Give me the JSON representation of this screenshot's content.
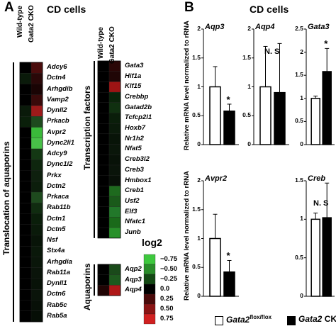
{
  "panel_a": {
    "letter": "A",
    "title": "CD cells",
    "col_labels": [
      "Wild-type",
      "Gata2 CKO"
    ],
    "group1_label": "Translocation of aquaporins",
    "group1_genes": [
      "Adcy6",
      "Dctn4",
      "Arhgdib",
      "Vamp2",
      "Dynll2",
      "Prkacb",
      "Avpr2",
      "Dync2li1",
      "Adcy9",
      "Dync1i2",
      "Prkx",
      "Dctn2",
      "Prkaca",
      "Rab11b",
      "Dctn1",
      "Dctn5",
      "Nsf",
      "Stx4a",
      "Arhgdia",
      "Rab11a",
      "Dynll1",
      "Dctn6",
      "Rab5c",
      "Rab5a"
    ],
    "group1_cells": [
      [
        "#000000",
        "#4a0c0c"
      ],
      [
        "#0a1a0a",
        "#2a0808"
      ],
      [
        "#000000",
        "#1a0404"
      ],
      [
        "#000000",
        "#3a0a0a"
      ],
      [
        "#0a1a0a",
        "#9e1a1a"
      ],
      [
        "#0a1f0a",
        "#1e4a1e"
      ],
      [
        "#000000",
        "#3ab93a"
      ],
      [
        "#000000",
        "#48c048"
      ],
      [
        "#000000",
        "#143814"
      ],
      [
        "#000000",
        "#0e260e"
      ],
      [
        "#000000",
        "#0e200e"
      ],
      [
        "#000000",
        "#0c1e0c"
      ],
      [
        "#000000",
        "#1e4a1e"
      ],
      [
        "#000000",
        "#102c10"
      ],
      [
        "#000000",
        "#0a1e0a"
      ],
      [
        "#000000",
        "#0a1a0a"
      ],
      [
        "#000000",
        "#081408"
      ],
      [
        "#000000",
        "#0a180a"
      ],
      [
        "#000000",
        "#0a160a"
      ],
      [
        "#000000",
        "#0a140a"
      ],
      [
        "#000000",
        "#081208"
      ],
      [
        "#000000",
        "#0a140a"
      ],
      [
        "#000000",
        "#081008"
      ],
      [
        "#000000",
        "#060e06"
      ]
    ],
    "group2_label": "Transcription factors",
    "group2_genes": [
      "Gata3",
      "Hif1a",
      "Klf15",
      "Crebbp",
      "Gatad2b",
      "Tcfcp2l1",
      "Hoxb7",
      "Nr1h2",
      "Nfat5",
      "Creb3l2",
      "Creb3",
      "Hmbox1",
      "Creb1",
      "Usf2",
      "Elf3",
      "Nfatc1",
      "Junb"
    ],
    "group2_cells": [
      [
        "#000000",
        "#2a0606"
      ],
      [
        "#000000",
        "#200606"
      ],
      [
        "#000000",
        "#9e1414"
      ],
      [
        "#000000",
        "#0a240a"
      ],
      [
        "#000000",
        "#103010"
      ],
      [
        "#000000",
        "#0a1e0a"
      ],
      [
        "#000000",
        "#0a1a0a"
      ],
      [
        "#000000",
        "#081408"
      ],
      [
        "#000000",
        "#0a160a"
      ],
      [
        "#000000",
        "#081208"
      ],
      [
        "#000000",
        "#0a140a"
      ],
      [
        "#000000",
        "#081008"
      ],
      [
        "#000000",
        "#1e6a1e"
      ],
      [
        "#000000",
        "#1a5a1a"
      ],
      [
        "#000000",
        "#22782a"
      ],
      [
        "#000000",
        "#1a6a1a"
      ],
      [
        "#000000",
        "#28902a"
      ]
    ],
    "group3_label": "Aquaporins",
    "group3_genes": [
      "Aqp2",
      "Aqp3",
      "Aqp4"
    ],
    "group3_cells": [
      [
        "#000000",
        "#1a4a1a"
      ],
      [
        "#000000",
        "#1e5a1e"
      ],
      [
        "#200404",
        "#b01818"
      ]
    ],
    "legend": {
      "title": "log2",
      "values": [
        "−0.75",
        "−0.50",
        "−0.25",
        "0.0",
        "0.25",
        "0.50",
        "0.75"
      ],
      "colors": [
        "#3ec83e",
        "#2a8c2a",
        "#144814",
        "#000000",
        "#4a0a0a",
        "#8a1414",
        "#d02020"
      ]
    }
  },
  "panel_b": {
    "letter": "B",
    "title": "CD cells",
    "ylabel": "Relative mRNA level normalized to rRNA",
    "legend_wt": "Gata2",
    "legend_wt_sup": "flox/flox",
    "legend_cko": "Gata2",
    "legend_cko_suffix": " CKO"
  },
  "chart_data": [
    {
      "type": "bar",
      "title": "Aqp3",
      "categories": [
        "Gata2 flox/flox",
        "Gata2 CKO"
      ],
      "values": [
        1.0,
        0.58
      ],
      "errors": [
        0.35,
        0.12
      ],
      "ylim": [
        0,
        2
      ],
      "yticks": [
        "0",
        "0.5",
        "1",
        "1.5",
        "2"
      ],
      "annotation": "*"
    },
    {
      "type": "bar",
      "title": "Aqp4",
      "categories": [
        "Gata2 flox/flox",
        "Gata2 CKO"
      ],
      "values": [
        1.0,
        0.9
      ],
      "errors": [
        0.7,
        0.85
      ],
      "ylim": [
        0,
        2
      ],
      "yticks": [
        "0",
        "0.5",
        "1",
        "1.5",
        "2"
      ],
      "annotation": "N. S"
    },
    {
      "type": "bar",
      "title": "Gata3",
      "categories": [
        "Gata2 flox/flox",
        "Gata2 CKO"
      ],
      "values": [
        1.0,
        1.58
      ],
      "errors": [
        0.05,
        0.5
      ],
      "ylim": [
        0,
        2.5
      ],
      "yticks": [
        "0",
        "0.5",
        "1",
        "1.5",
        "2",
        "2.5"
      ],
      "annotation": "*"
    },
    {
      "type": "bar",
      "title": "Avpr2",
      "categories": [
        "Gata2 flox/flox",
        "Gata2 CKO"
      ],
      "values": [
        1.0,
        0.42
      ],
      "errors": [
        0.42,
        0.2
      ],
      "ylim": [
        0,
        2
      ],
      "yticks": [
        "0",
        "0.5",
        "1",
        "1.5",
        "2"
      ],
      "annotation": "*"
    },
    {
      "type": "bar",
      "title": "Creb",
      "categories": [
        "Gata2 flox/flox",
        "Gata2 CKO"
      ],
      "values": [
        1.0,
        1.02
      ],
      "errors": [
        0.08,
        0.45
      ],
      "ylim": [
        0,
        1.5
      ],
      "yticks": [
        "0",
        "0.5",
        "1",
        "1.5"
      ],
      "annotation": "N. S"
    }
  ]
}
